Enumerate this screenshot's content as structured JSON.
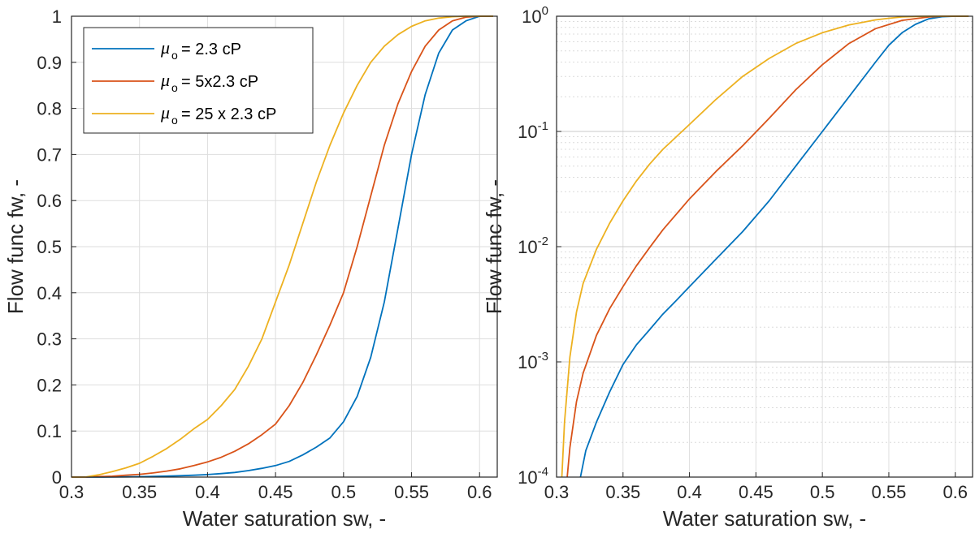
{
  "chart_data": [
    {
      "type": "line",
      "xlabel": "Water saturation sw, -",
      "ylabel": "Flow func fw, -",
      "xlim": [
        0.3,
        0.613
      ],
      "ylim": [
        0,
        1
      ],
      "yscale": "linear",
      "grid": true,
      "legend_position": "top-left",
      "xticks": [
        "0.3",
        "0.35",
        "0.4",
        "0.45",
        "0.5",
        "0.55",
        "0.6"
      ],
      "yticks": [
        "0",
        "0.1",
        "0.2",
        "0.3",
        "0.4",
        "0.5",
        "0.6",
        "0.7",
        "0.8",
        "0.9",
        "1"
      ],
      "legend": [
        {
          "symbol": "μ",
          "subscript": "o",
          "text": "= 2.3 cP",
          "color": "#0072BD"
        },
        {
          "symbol": "μ",
          "subscript": "o",
          "text": "= 5x2.3 cP",
          "color": "#D95319"
        },
        {
          "symbol": "μ",
          "subscript": "o",
          "text": "= 25 x 2.3 cP",
          "color": "#EDB120"
        }
      ],
      "series": [
        {
          "name": "μo = 2.3 cP",
          "color": "#0072BD",
          "x": [
            0.3,
            0.31,
            0.32,
            0.33,
            0.34,
            0.35,
            0.36,
            0.37,
            0.38,
            0.39,
            0.4,
            0.41,
            0.42,
            0.43,
            0.44,
            0.45,
            0.46,
            0.47,
            0.48,
            0.49,
            0.5,
            0.51,
            0.52,
            0.53,
            0.54,
            0.55,
            0.56,
            0.57,
            0.58,
            0.59,
            0.6,
            0.61
          ],
          "y": [
            0,
            0,
            0,
            0.0002,
            0.0005,
            0.0009,
            0.0015,
            0.0022,
            0.003,
            0.004,
            0.0055,
            0.0075,
            0.01,
            0.014,
            0.019,
            0.025,
            0.034,
            0.048,
            0.065,
            0.085,
            0.12,
            0.175,
            0.26,
            0.38,
            0.54,
            0.7,
            0.83,
            0.92,
            0.97,
            0.99,
            1.0,
            1.0
          ]
        },
        {
          "name": "μo = 5x2.3 cP",
          "color": "#D95319",
          "x": [
            0.3,
            0.31,
            0.32,
            0.33,
            0.34,
            0.35,
            0.36,
            0.37,
            0.38,
            0.39,
            0.4,
            0.41,
            0.42,
            0.43,
            0.44,
            0.45,
            0.46,
            0.47,
            0.48,
            0.49,
            0.5,
            0.51,
            0.52,
            0.53,
            0.54,
            0.55,
            0.56,
            0.57,
            0.58,
            0.59,
            0.6,
            0.61
          ],
          "y": [
            0,
            0,
            0.001,
            0.002,
            0.004,
            0.006,
            0.009,
            0.013,
            0.018,
            0.025,
            0.033,
            0.043,
            0.056,
            0.072,
            0.092,
            0.115,
            0.155,
            0.205,
            0.265,
            0.33,
            0.4,
            0.5,
            0.61,
            0.72,
            0.81,
            0.88,
            0.935,
            0.97,
            0.99,
            0.998,
            1.0,
            1.0
          ]
        },
        {
          "name": "μo = 25 x 2.3 cP",
          "color": "#EDB120",
          "x": [
            0.3,
            0.31,
            0.32,
            0.33,
            0.34,
            0.35,
            0.36,
            0.37,
            0.38,
            0.39,
            0.4,
            0.41,
            0.42,
            0.43,
            0.44,
            0.45,
            0.46,
            0.47,
            0.48,
            0.49,
            0.5,
            0.51,
            0.52,
            0.53,
            0.54,
            0.55,
            0.56,
            0.57,
            0.58,
            0.59,
            0.6,
            0.61
          ],
          "y": [
            0,
            0,
            0.005,
            0.012,
            0.02,
            0.03,
            0.045,
            0.062,
            0.082,
            0.105,
            0.125,
            0.155,
            0.19,
            0.24,
            0.3,
            0.38,
            0.46,
            0.55,
            0.64,
            0.72,
            0.79,
            0.85,
            0.9,
            0.935,
            0.96,
            0.978,
            0.99,
            0.996,
            0.999,
            1.0,
            1.0,
            1.0
          ]
        }
      ]
    },
    {
      "type": "line",
      "xlabel": "Water saturation sw, -",
      "ylabel": "Flow func fw, -",
      "xlim": [
        0.3,
        0.613
      ],
      "ylim": [
        0.0001,
        1
      ],
      "yscale": "log",
      "grid": true,
      "xticks": [
        "0.3",
        "0.35",
        "0.4",
        "0.45",
        "0.5",
        "0.55",
        "0.6"
      ],
      "yticks": [
        {
          "base": "10",
          "exp": "-4"
        },
        {
          "base": "10",
          "exp": "-3"
        },
        {
          "base": "10",
          "exp": "-2"
        },
        {
          "base": "10",
          "exp": "-1"
        },
        {
          "base": "10",
          "exp": "0"
        }
      ],
      "series": [
        {
          "name": "μo = 2.3 cP",
          "color": "#0072BD",
          "x": [
            0.318,
            0.322,
            0.33,
            0.34,
            0.35,
            0.36,
            0.37,
            0.38,
            0.39,
            0.4,
            0.42,
            0.44,
            0.46,
            0.48,
            0.5,
            0.52,
            0.54,
            0.55,
            0.56,
            0.57,
            0.58,
            0.59,
            0.6,
            0.61
          ],
          "y": [
            0.0001,
            0.00017,
            0.0003,
            0.00055,
            0.00095,
            0.0014,
            0.0019,
            0.0026,
            0.0034,
            0.0045,
            0.0078,
            0.0135,
            0.025,
            0.05,
            0.1,
            0.2,
            0.4,
            0.56,
            0.72,
            0.85,
            0.95,
            0.99,
            1.0,
            1.0
          ]
        },
        {
          "name": "μo = 5x2.3 cP",
          "color": "#D95319",
          "x": [
            0.308,
            0.31,
            0.315,
            0.32,
            0.33,
            0.34,
            0.35,
            0.36,
            0.37,
            0.38,
            0.4,
            0.42,
            0.44,
            0.46,
            0.48,
            0.5,
            0.52,
            0.54,
            0.56,
            0.58,
            0.59,
            0.6,
            0.61
          ],
          "y": [
            0.0001,
            0.00018,
            0.00045,
            0.0008,
            0.0017,
            0.0029,
            0.0045,
            0.0068,
            0.0098,
            0.014,
            0.026,
            0.045,
            0.075,
            0.13,
            0.23,
            0.38,
            0.58,
            0.78,
            0.92,
            0.985,
            0.998,
            1.0,
            1.0
          ]
        },
        {
          "name": "μo = 25 x 2.3 cP",
          "color": "#EDB120",
          "x": [
            0.304,
            0.306,
            0.31,
            0.315,
            0.32,
            0.33,
            0.34,
            0.35,
            0.36,
            0.37,
            0.38,
            0.4,
            0.42,
            0.44,
            0.46,
            0.48,
            0.5,
            0.52,
            0.54,
            0.55,
            0.56,
            0.57,
            0.58,
            0.59,
            0.6,
            0.61
          ],
          "y": [
            0.0001,
            0.0003,
            0.0011,
            0.0027,
            0.0048,
            0.0095,
            0.016,
            0.025,
            0.037,
            0.052,
            0.07,
            0.115,
            0.19,
            0.3,
            0.43,
            0.58,
            0.72,
            0.84,
            0.93,
            0.96,
            0.985,
            0.995,
            1.0,
            1.0,
            1.0,
            1.0
          ]
        }
      ]
    }
  ]
}
